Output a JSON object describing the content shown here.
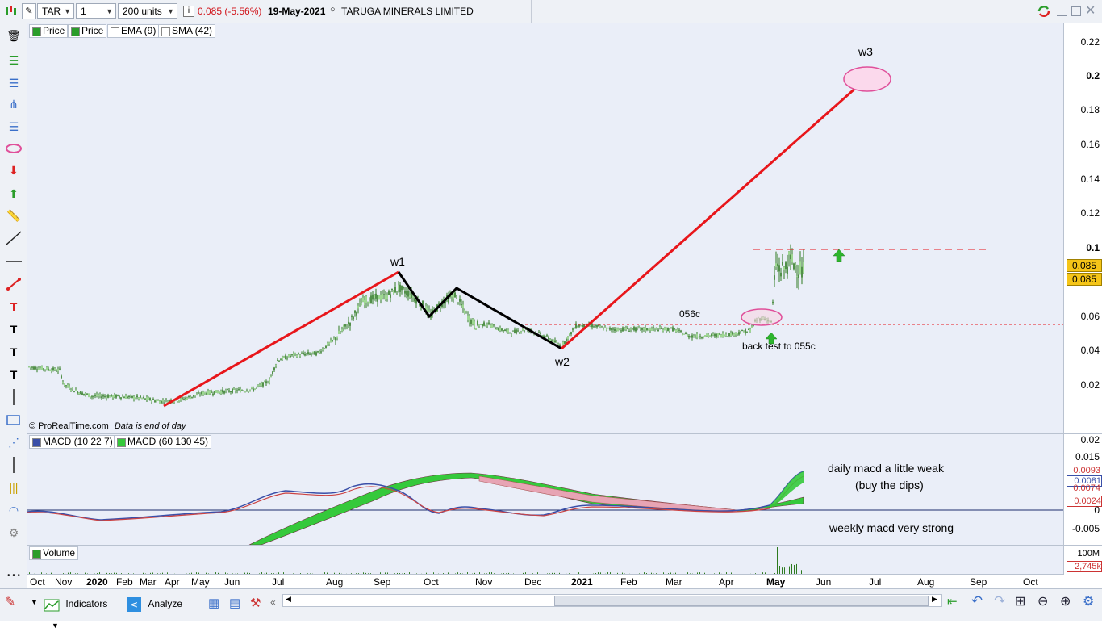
{
  "toolbar": {
    "symbol": "TAR",
    "timeframe": "1 day",
    "units": "200 units",
    "last_price": "0.085 (-5.56%)",
    "date": "19-May-2021",
    "instrument_name": "TARUGA MINERALS LIMITED"
  },
  "price_panel": {
    "tags": [
      "Price",
      "Price",
      "EMA (9)",
      "SMA (42)"
    ],
    "copyright": "© ProRealTime.com",
    "data_note": "Data is end of day",
    "annotations": {
      "w1": "w1",
      "w2": "w2",
      "w3": "w3",
      "level_label": "056c",
      "backtest_note": "back test to 055c"
    },
    "price_tags": [
      "0.085",
      "0.085"
    ]
  },
  "y_axis_price": [
    "0.22",
    "0.2",
    "0.18",
    "0.16",
    "0.14",
    "0.12",
    "0.1",
    "0.08",
    "0.06",
    "0.04",
    "0.02"
  ],
  "macd_panel": {
    "tags": [
      "MACD (10 22 7)",
      "MACD (60 130 45)"
    ],
    "note_daily_line1": "daily macd a little weak",
    "note_daily_line2": "(buy the dips)",
    "note_weekly": "weekly macd very strong",
    "y_axis": [
      "0.02",
      "0.015",
      "0",
      "-0.005"
    ],
    "value_tags": [
      "0.0093",
      "0.0081",
      "0.0074",
      "0.0024"
    ]
  },
  "volume_panel": {
    "tag": "Volume",
    "scale_label": "100M",
    "value_tag": "2,745k"
  },
  "x_axis": [
    "Oct",
    "Nov",
    "2020",
    "Feb",
    "Mar",
    "Apr",
    "May",
    "Jun",
    "Jul",
    "Aug",
    "Sep",
    "Oct",
    "Nov",
    "Dec",
    "2021",
    "Feb",
    "Mar",
    "Apr",
    "May",
    "Jun",
    "Jul",
    "Aug",
    "Sep",
    "Oct"
  ],
  "bottom_bar": {
    "indicators_label": "Indicators",
    "analyze_label": "Analyze"
  },
  "colors": {
    "panel_bg": "#eaeef8",
    "trend_red": "#e8161b",
    "candle_green": "#2d7a1f",
    "macd_green": "#35c93b",
    "macd_pink": "#e7a4b4",
    "price_tag_bg": "#f5c518"
  }
}
